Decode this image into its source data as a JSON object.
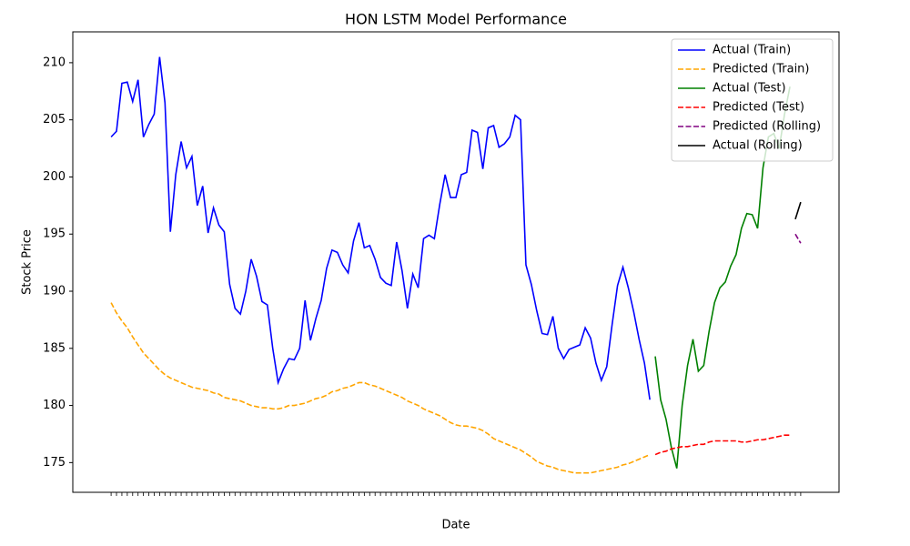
{
  "chart_data": {
    "type": "line",
    "title": "HON LSTM Model Performance",
    "x_label": "Date",
    "y_label": "Stock Price",
    "categories": [
      null,
      null,
      null,
      null,
      null,
      null,
      null,
      null,
      null,
      null,
      null,
      null,
      null,
      null,
      null,
      null,
      null,
      null,
      null,
      null,
      null,
      null,
      null,
      null,
      null,
      null,
      null,
      null,
      null,
      null,
      null,
      null,
      null,
      null,
      null,
      null,
      null,
      null,
      null,
      null,
      null,
      null,
      null,
      null,
      null,
      null,
      null,
      null,
      null,
      null,
      null,
      null,
      null,
      null,
      null,
      null,
      null,
      null,
      null,
      null,
      null,
      null,
      null,
      null,
      null,
      null,
      null,
      null,
      null,
      null,
      null,
      null,
      null,
      null,
      null,
      null,
      null,
      null,
      null,
      null,
      null,
      null,
      null,
      null,
      null,
      null,
      null,
      null,
      null,
      null,
      null,
      null,
      null,
      null,
      null,
      null,
      null,
      null,
      null,
      null,
      null,
      null,
      null,
      null,
      null,
      null,
      null,
      null,
      null,
      null,
      null,
      null,
      null,
      null,
      null,
      null,
      null,
      null,
      null,
      null,
      null,
      null,
      null,
      null,
      null,
      null,
      null,
      null,
      null
    ],
    "series": [
      {
        "name": "Actual (Train)",
        "color": "#0000ff",
        "linestyle": "solid",
        "values": [
          203.5,
          204.0,
          208.2,
          208.3,
          206.6,
          208.5,
          203.5,
          204.6,
          205.5,
          210.5,
          206.5,
          195.2,
          200.2,
          203.1,
          200.8,
          201.8,
          197.5,
          199.2,
          195.1,
          197.3,
          195.8,
          195.2,
          190.6,
          188.5,
          188.0,
          190.0,
          192.8,
          191.3,
          189.1,
          188.8,
          185.0,
          182.0,
          183.2,
          184.1,
          184.0,
          185.0,
          189.2,
          185.7,
          187.6,
          189.2,
          192.0,
          193.6,
          193.4,
          192.3,
          191.6,
          194.4,
          196.0,
          193.8,
          194.0,
          192.8,
          191.2,
          190.7,
          190.5,
          194.3,
          191.8,
          188.5,
          191.5,
          190.3,
          194.6,
          194.9,
          194.6,
          197.6,
          200.2,
          198.2,
          198.2,
          200.2,
          200.4,
          204.1,
          203.9,
          200.7,
          204.3,
          204.5,
          202.6,
          202.9,
          203.5,
          205.4,
          205.0,
          192.3,
          190.6,
          188.3,
          186.3,
          186.2,
          187.8,
          185.0,
          184.1,
          184.9,
          185.1,
          185.3,
          186.8,
          185.9,
          183.7,
          182.2,
          183.4,
          187.1,
          190.5,
          192.1,
          190.3,
          188.2,
          185.8,
          183.7,
          180.5,
          null,
          null,
          null,
          null,
          null,
          null,
          null,
          null,
          null,
          null,
          null,
          null,
          null,
          null,
          null,
          null,
          null,
          null,
          null,
          null,
          null,
          null,
          null,
          null,
          null,
          null,
          null,
          null
        ]
      },
      {
        "name": "Predicted (Train)",
        "color": "#ffa500",
        "linestyle": "dashed",
        "values": [
          189.0,
          188.1,
          187.4,
          186.8,
          186.0,
          185.3,
          184.6,
          184.1,
          183.6,
          183.1,
          182.7,
          182.4,
          182.2,
          182.0,
          181.8,
          181.6,
          181.5,
          181.4,
          181.3,
          181.1,
          181.0,
          180.7,
          180.6,
          180.5,
          180.4,
          180.2,
          180.0,
          179.9,
          179.8,
          179.8,
          179.7,
          179.7,
          179.8,
          180.0,
          180.0,
          180.1,
          180.2,
          180.4,
          180.6,
          180.7,
          180.9,
          181.2,
          181.3,
          181.5,
          181.6,
          181.8,
          182.0,
          182.0,
          181.8,
          181.7,
          181.5,
          181.3,
          181.1,
          180.9,
          180.7,
          180.4,
          180.2,
          180.0,
          179.7,
          179.5,
          179.3,
          179.1,
          178.8,
          178.5,
          178.3,
          178.2,
          178.2,
          178.1,
          178.0,
          177.8,
          177.5,
          177.1,
          176.9,
          176.7,
          176.5,
          176.3,
          176.1,
          175.8,
          175.5,
          175.1,
          174.9,
          174.7,
          174.6,
          174.4,
          174.3,
          174.2,
          174.1,
          174.1,
          174.1,
          174.1,
          174.2,
          174.3,
          174.4,
          174.5,
          174.6,
          174.8,
          174.9,
          175.1,
          175.3,
          175.5,
          175.7,
          null,
          null,
          null,
          null,
          null,
          null,
          null,
          null,
          null,
          null,
          null,
          null,
          null,
          null,
          null,
          null,
          null,
          null,
          null,
          null,
          null,
          null,
          null,
          null,
          null,
          null,
          null,
          null
        ]
      },
      {
        "name": "Actual (Test)",
        "color": "#008000",
        "linestyle": "solid",
        "values": [
          null,
          null,
          null,
          null,
          null,
          null,
          null,
          null,
          null,
          null,
          null,
          null,
          null,
          null,
          null,
          null,
          null,
          null,
          null,
          null,
          null,
          null,
          null,
          null,
          null,
          null,
          null,
          null,
          null,
          null,
          null,
          null,
          null,
          null,
          null,
          null,
          null,
          null,
          null,
          null,
          null,
          null,
          null,
          null,
          null,
          null,
          null,
          null,
          null,
          null,
          null,
          null,
          null,
          null,
          null,
          null,
          null,
          null,
          null,
          null,
          null,
          null,
          null,
          null,
          null,
          null,
          null,
          null,
          null,
          null,
          null,
          null,
          null,
          null,
          null,
          null,
          null,
          null,
          null,
          null,
          null,
          null,
          null,
          null,
          null,
          null,
          null,
          null,
          null,
          null,
          null,
          null,
          null,
          null,
          null,
          null,
          null,
          null,
          null,
          null,
          null,
          184.3,
          180.5,
          178.8,
          176.3,
          174.5,
          180.0,
          183.5,
          185.8,
          183.0,
          183.5,
          186.5,
          189.0,
          190.3,
          190.8,
          192.2,
          193.2,
          195.5,
          196.8,
          196.7,
          195.5,
          200.8,
          203.5,
          203.8,
          202.5,
          205.5,
          207.9,
          null,
          null
        ]
      },
      {
        "name": "Predicted (Test)",
        "color": "#ff0000",
        "linestyle": "dashed",
        "values": [
          null,
          null,
          null,
          null,
          null,
          null,
          null,
          null,
          null,
          null,
          null,
          null,
          null,
          null,
          null,
          null,
          null,
          null,
          null,
          null,
          null,
          null,
          null,
          null,
          null,
          null,
          null,
          null,
          null,
          null,
          null,
          null,
          null,
          null,
          null,
          null,
          null,
          null,
          null,
          null,
          null,
          null,
          null,
          null,
          null,
          null,
          null,
          null,
          null,
          null,
          null,
          null,
          null,
          null,
          null,
          null,
          null,
          null,
          null,
          null,
          null,
          null,
          null,
          null,
          null,
          null,
          null,
          null,
          null,
          null,
          null,
          null,
          null,
          null,
          null,
          null,
          null,
          null,
          null,
          null,
          null,
          null,
          null,
          null,
          null,
          null,
          null,
          null,
          null,
          null,
          null,
          null,
          null,
          null,
          null,
          null,
          null,
          null,
          null,
          null,
          null,
          175.7,
          175.9,
          176.0,
          176.2,
          176.3,
          176.4,
          176.4,
          176.5,
          176.6,
          176.6,
          176.8,
          176.9,
          176.9,
          176.9,
          176.9,
          176.9,
          176.8,
          176.8,
          176.9,
          177.0,
          177.0,
          177.1,
          177.2,
          177.3,
          177.4,
          177.4,
          null,
          null
        ]
      },
      {
        "name": "Predicted (Rolling)",
        "color": "#800080",
        "linestyle": "dashed",
        "values": [
          null,
          null,
          null,
          null,
          null,
          null,
          null,
          null,
          null,
          null,
          null,
          null,
          null,
          null,
          null,
          null,
          null,
          null,
          null,
          null,
          null,
          null,
          null,
          null,
          null,
          null,
          null,
          null,
          null,
          null,
          null,
          null,
          null,
          null,
          null,
          null,
          null,
          null,
          null,
          null,
          null,
          null,
          null,
          null,
          null,
          null,
          null,
          null,
          null,
          null,
          null,
          null,
          null,
          null,
          null,
          null,
          null,
          null,
          null,
          null,
          null,
          null,
          null,
          null,
          null,
          null,
          null,
          null,
          null,
          null,
          null,
          null,
          null,
          null,
          null,
          null,
          null,
          null,
          null,
          null,
          null,
          null,
          null,
          null,
          null,
          null,
          null,
          null,
          null,
          null,
          null,
          null,
          null,
          null,
          null,
          null,
          null,
          null,
          null,
          null,
          null,
          null,
          null,
          null,
          null,
          null,
          null,
          null,
          null,
          null,
          null,
          null,
          null,
          null,
          null,
          null,
          null,
          null,
          null,
          null,
          null,
          null,
          null,
          null,
          null,
          null,
          null,
          195.0,
          194.2
        ]
      },
      {
        "name": "Actual (Rolling)",
        "color": "#000000",
        "linestyle": "solid",
        "values": [
          null,
          null,
          null,
          null,
          null,
          null,
          null,
          null,
          null,
          null,
          null,
          null,
          null,
          null,
          null,
          null,
          null,
          null,
          null,
          null,
          null,
          null,
          null,
          null,
          null,
          null,
          null,
          null,
          null,
          null,
          null,
          null,
          null,
          null,
          null,
          null,
          null,
          null,
          null,
          null,
          null,
          null,
          null,
          null,
          null,
          null,
          null,
          null,
          null,
          null,
          null,
          null,
          null,
          null,
          null,
          null,
          null,
          null,
          null,
          null,
          null,
          null,
          null,
          null,
          null,
          null,
          null,
          null,
          null,
          null,
          null,
          null,
          null,
          null,
          null,
          null,
          null,
          null,
          null,
          null,
          null,
          null,
          null,
          null,
          null,
          null,
          null,
          null,
          null,
          null,
          null,
          null,
          null,
          null,
          null,
          null,
          null,
          null,
          null,
          null,
          null,
          null,
          null,
          null,
          null,
          null,
          null,
          null,
          null,
          null,
          null,
          null,
          null,
          null,
          null,
          null,
          null,
          null,
          null,
          null,
          null,
          null,
          null,
          null,
          null,
          null,
          null,
          196.3,
          197.8
        ]
      }
    ],
    "ylim": [
      172.4,
      212.7
    ],
    "yticks": [
      175,
      180,
      185,
      190,
      195,
      200,
      205,
      210
    ],
    "grid": false,
    "legend": "upper right"
  }
}
